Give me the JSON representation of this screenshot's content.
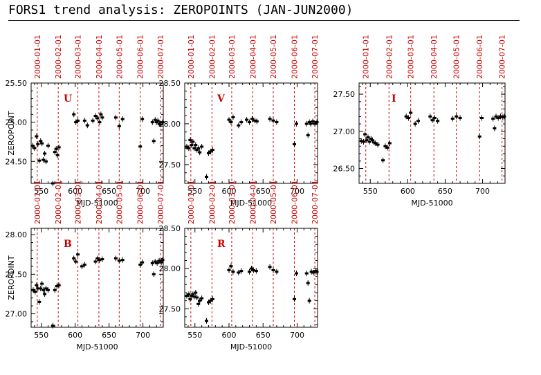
{
  "page_title": "FORS1 trend analysis: ZEROPOINTS (JAN-JUN2000)",
  "colors": {
    "axes": "#000000",
    "points": "#000000",
    "month_markers": "#cc0000",
    "band_label": "#cc0000"
  },
  "chart_data": [
    {
      "type": "scatter",
      "band": "U",
      "xlabel": "MJD-51000",
      "ylabel": "ZEROPOINT",
      "xlim": [
        535,
        730
      ],
      "ylim": [
        24.22,
        25.5
      ],
      "xticks": [
        550,
        600,
        650,
        700
      ],
      "yticks": [
        24.5,
        25.0,
        25.5
      ],
      "yticklabels": [
        "24.50",
        "25.00",
        "25.50"
      ],
      "month_markers": {
        "dates": [
          "2000-01-01",
          "2000-02-01",
          "2000-03-01",
          "2000-04-01",
          "2000-05-01",
          "2000-06-01",
          "2000-07-01"
        ],
        "x": [
          544,
          575,
          604,
          635,
          665,
          696,
          726
        ]
      },
      "points": [
        {
          "x": 537,
          "y": 24.7
        },
        {
          "x": 540,
          "y": 24.67
        },
        {
          "x": 543,
          "y": 24.82
        },
        {
          "x": 545,
          "y": 24.72
        },
        {
          "x": 547,
          "y": 24.51
        },
        {
          "x": 549,
          "y": 24.76
        },
        {
          "x": 551,
          "y": 24.73
        },
        {
          "x": 553,
          "y": 24.52
        },
        {
          "x": 555,
          "y": 24.6
        },
        {
          "x": 557,
          "y": 24.5
        },
        {
          "x": 560,
          "y": 24.7
        },
        {
          "x": 567,
          "y": 24.22
        },
        {
          "x": 570,
          "y": 24.62
        },
        {
          "x": 572,
          "y": 24.66
        },
        {
          "x": 574,
          "y": 24.58
        },
        {
          "x": 576,
          "y": 24.68
        },
        {
          "x": 598,
          "y": 25.1
        },
        {
          "x": 601,
          "y": 25.0
        },
        {
          "x": 604,
          "y": 25.02
        },
        {
          "x": 614,
          "y": 25.02
        },
        {
          "x": 618,
          "y": 24.96
        },
        {
          "x": 626,
          "y": 25.02
        },
        {
          "x": 630,
          "y": 25.08
        },
        {
          "x": 633,
          "y": 25.05
        },
        {
          "x": 636,
          "y": 25.0
        },
        {
          "x": 638,
          "y": 25.1
        },
        {
          "x": 640,
          "y": 25.06
        },
        {
          "x": 660,
          "y": 25.06
        },
        {
          "x": 665,
          "y": 24.95
        },
        {
          "x": 670,
          "y": 25.04
        },
        {
          "x": 696,
          "y": 24.69
        },
        {
          "x": 699,
          "y": 25.04
        },
        {
          "x": 714,
          "y": 25.0
        },
        {
          "x": 716,
          "y": 24.76
        },
        {
          "x": 718,
          "y": 25.03
        },
        {
          "x": 720,
          "y": 25.0
        },
        {
          "x": 722,
          "y": 25.02
        },
        {
          "x": 724,
          "y": 24.98
        },
        {
          "x": 726,
          "y": 24.97
        },
        {
          "x": 729,
          "y": 25.0
        }
      ]
    },
    {
      "type": "scatter",
      "band": "V",
      "xlabel": "MJD-51000",
      "ylabel": "",
      "xlim": [
        535,
        730
      ],
      "ylim": [
        27.27,
        28.5
      ],
      "xticks": [
        550,
        600,
        650,
        700
      ],
      "yticks": [
        27.5,
        28.0,
        28.5
      ],
      "yticklabels": [
        "27.50",
        "28.00",
        "28.50"
      ],
      "month_markers": {
        "dates": [
          "2000-01-01",
          "2000-02-01",
          "2000-03-01",
          "2000-04-01",
          "2000-05-01",
          "2000-06-01",
          "2000-07-01"
        ],
        "x": [
          544,
          575,
          604,
          635,
          665,
          696,
          726
        ]
      },
      "points": [
        {
          "x": 538,
          "y": 27.72
        },
        {
          "x": 541,
          "y": 27.7
        },
        {
          "x": 543,
          "y": 27.8
        },
        {
          "x": 545,
          "y": 27.74
        },
        {
          "x": 547,
          "y": 27.78
        },
        {
          "x": 549,
          "y": 27.7
        },
        {
          "x": 551,
          "y": 27.74
        },
        {
          "x": 553,
          "y": 27.68
        },
        {
          "x": 555,
          "y": 27.7
        },
        {
          "x": 557,
          "y": 27.65
        },
        {
          "x": 560,
          "y": 27.72
        },
        {
          "x": 567,
          "y": 27.35
        },
        {
          "x": 570,
          "y": 27.64
        },
        {
          "x": 573,
          "y": 27.66
        },
        {
          "x": 576,
          "y": 27.68
        },
        {
          "x": 600,
          "y": 28.05
        },
        {
          "x": 603,
          "y": 28.02
        },
        {
          "x": 606,
          "y": 28.08
        },
        {
          "x": 614,
          "y": 27.98
        },
        {
          "x": 618,
          "y": 28.02
        },
        {
          "x": 626,
          "y": 28.05
        },
        {
          "x": 630,
          "y": 28.02
        },
        {
          "x": 634,
          "y": 28.06
        },
        {
          "x": 638,
          "y": 28.04
        },
        {
          "x": 641,
          "y": 28.03
        },
        {
          "x": 660,
          "y": 28.06
        },
        {
          "x": 665,
          "y": 28.04
        },
        {
          "x": 670,
          "y": 28.02
        },
        {
          "x": 696,
          "y": 27.75
        },
        {
          "x": 699,
          "y": 28.0
        },
        {
          "x": 714,
          "y": 28.0
        },
        {
          "x": 716,
          "y": 27.86
        },
        {
          "x": 718,
          "y": 28.02
        },
        {
          "x": 720,
          "y": 28.0
        },
        {
          "x": 723,
          "y": 28.03
        },
        {
          "x": 726,
          "y": 28.0
        },
        {
          "x": 729,
          "y": 28.02
        }
      ]
    },
    {
      "type": "scatter",
      "band": "I",
      "xlabel": "MJD-51000",
      "ylabel": "",
      "xlim": [
        535,
        730
      ],
      "ylim": [
        26.3,
        27.65
      ],
      "xticks": [
        550,
        600,
        650,
        700
      ],
      "yticks": [
        26.5,
        27.0,
        27.5
      ],
      "yticklabels": [
        "26.50",
        "27.00",
        "27.50"
      ],
      "month_markers": {
        "dates": [
          "2000-01-01",
          "2000-02-01",
          "2000-03-01",
          "2000-04-01",
          "2000-05-01",
          "2000-06-01",
          "2000-07-01"
        ],
        "x": [
          544,
          575,
          604,
          635,
          665,
          696,
          726
        ]
      },
      "points": [
        {
          "x": 538,
          "y": 26.87
        },
        {
          "x": 541,
          "y": 26.86
        },
        {
          "x": 543,
          "y": 26.96
        },
        {
          "x": 545,
          "y": 26.88
        },
        {
          "x": 547,
          "y": 26.92
        },
        {
          "x": 549,
          "y": 26.86
        },
        {
          "x": 551,
          "y": 26.9
        },
        {
          "x": 553,
          "y": 26.88
        },
        {
          "x": 555,
          "y": 26.85
        },
        {
          "x": 557,
          "y": 26.84
        },
        {
          "x": 560,
          "y": 26.82
        },
        {
          "x": 567,
          "y": 26.61
        },
        {
          "x": 570,
          "y": 26.8
        },
        {
          "x": 573,
          "y": 26.78
        },
        {
          "x": 576,
          "y": 26.84
        },
        {
          "x": 598,
          "y": 27.2
        },
        {
          "x": 601,
          "y": 27.18
        },
        {
          "x": 604,
          "y": 27.25
        },
        {
          "x": 610,
          "y": 27.1
        },
        {
          "x": 614,
          "y": 27.14
        },
        {
          "x": 630,
          "y": 27.2
        },
        {
          "x": 633,
          "y": 27.15
        },
        {
          "x": 636,
          "y": 27.18
        },
        {
          "x": 640,
          "y": 27.14
        },
        {
          "x": 660,
          "y": 27.17
        },
        {
          "x": 665,
          "y": 27.2
        },
        {
          "x": 670,
          "y": 27.18
        },
        {
          "x": 696,
          "y": 26.93
        },
        {
          "x": 699,
          "y": 27.18
        },
        {
          "x": 714,
          "y": 27.17
        },
        {
          "x": 716,
          "y": 27.04
        },
        {
          "x": 718,
          "y": 27.2
        },
        {
          "x": 721,
          "y": 27.18
        },
        {
          "x": 724,
          "y": 27.2
        },
        {
          "x": 727,
          "y": 27.19
        },
        {
          "x": 729,
          "y": 27.2
        }
      ]
    },
    {
      "type": "scatter",
      "band": "B",
      "xlabel": "MJD-51000",
      "ylabel": "ZEROPOINT",
      "xlim": [
        535,
        730
      ],
      "ylim": [
        26.83,
        28.08
      ],
      "xticks": [
        550,
        600,
        650,
        700
      ],
      "yticks": [
        27.0,
        27.5,
        28.0
      ],
      "yticklabels": [
        "27.00",
        "27.50",
        "28.00"
      ],
      "month_markers": {
        "dates": [
          "2000-01-01",
          "2000-02-01",
          "2000-03-01",
          "2000-04-01",
          "2000-05-01",
          "2000-06-01",
          "2000-07-01"
        ],
        "x": [
          544,
          575,
          604,
          635,
          665,
          696,
          726
        ]
      },
      "points": [
        {
          "x": 538,
          "y": 27.3
        },
        {
          "x": 541,
          "y": 27.28
        },
        {
          "x": 543,
          "y": 27.36
        },
        {
          "x": 545,
          "y": 27.32
        },
        {
          "x": 547,
          "y": 27.15
        },
        {
          "x": 549,
          "y": 27.32
        },
        {
          "x": 551,
          "y": 27.38
        },
        {
          "x": 553,
          "y": 27.3
        },
        {
          "x": 555,
          "y": 27.25
        },
        {
          "x": 557,
          "y": 27.32
        },
        {
          "x": 560,
          "y": 27.3
        },
        {
          "x": 567,
          "y": 26.85
        },
        {
          "x": 570,
          "y": 27.3
        },
        {
          "x": 573,
          "y": 27.35
        },
        {
          "x": 576,
          "y": 27.36
        },
        {
          "x": 598,
          "y": 27.7
        },
        {
          "x": 601,
          "y": 27.66
        },
        {
          "x": 604,
          "y": 27.75
        },
        {
          "x": 610,
          "y": 27.6
        },
        {
          "x": 614,
          "y": 27.62
        },
        {
          "x": 630,
          "y": 27.66
        },
        {
          "x": 633,
          "y": 27.7
        },
        {
          "x": 636,
          "y": 27.68
        },
        {
          "x": 640,
          "y": 27.69
        },
        {
          "x": 660,
          "y": 27.7
        },
        {
          "x": 665,
          "y": 27.67
        },
        {
          "x": 670,
          "y": 27.68
        },
        {
          "x": 696,
          "y": 27.62
        },
        {
          "x": 699,
          "y": 27.65
        },
        {
          "x": 714,
          "y": 27.64
        },
        {
          "x": 716,
          "y": 27.5
        },
        {
          "x": 718,
          "y": 27.66
        },
        {
          "x": 721,
          "y": 27.64
        },
        {
          "x": 724,
          "y": 27.67
        },
        {
          "x": 727,
          "y": 27.65
        },
        {
          "x": 729,
          "y": 27.68
        }
      ]
    },
    {
      "type": "scatter",
      "band": "R",
      "xlabel": "MJD-51000",
      "ylabel": "",
      "xlim": [
        535,
        730
      ],
      "ylim": [
        27.27,
        28.5
      ],
      "xticks": [
        550,
        600,
        650,
        700
      ],
      "yticks": [
        27.5,
        28.0,
        28.5
      ],
      "yticklabels": [
        "27.50",
        "28.00",
        "28.50"
      ],
      "month_markers": {
        "dates": [
          "2000-01-01",
          "2000-02-01",
          "2000-03-01",
          "2000-04-01",
          "2000-05-01",
          "2000-06-01",
          "2000-07-01"
        ],
        "x": [
          544,
          575,
          604,
          635,
          665,
          696,
          726
        ]
      },
      "points": [
        {
          "x": 538,
          "y": 27.66
        },
        {
          "x": 541,
          "y": 27.68
        },
        {
          "x": 543,
          "y": 27.62
        },
        {
          "x": 545,
          "y": 27.66
        },
        {
          "x": 547,
          "y": 27.68
        },
        {
          "x": 549,
          "y": 27.65
        },
        {
          "x": 551,
          "y": 27.7
        },
        {
          "x": 553,
          "y": 27.64
        },
        {
          "x": 555,
          "y": 27.56
        },
        {
          "x": 557,
          "y": 27.6
        },
        {
          "x": 560,
          "y": 27.63
        },
        {
          "x": 567,
          "y": 27.35
        },
        {
          "x": 570,
          "y": 27.58
        },
        {
          "x": 573,
          "y": 27.6
        },
        {
          "x": 576,
          "y": 27.62
        },
        {
          "x": 600,
          "y": 27.98
        },
        {
          "x": 603,
          "y": 28.03
        },
        {
          "x": 606,
          "y": 27.96
        },
        {
          "x": 614,
          "y": 27.95
        },
        {
          "x": 618,
          "y": 27.97
        },
        {
          "x": 630,
          "y": 27.96
        },
        {
          "x": 633,
          "y": 28.0
        },
        {
          "x": 636,
          "y": 27.98
        },
        {
          "x": 640,
          "y": 27.97
        },
        {
          "x": 660,
          "y": 28.02
        },
        {
          "x": 665,
          "y": 27.98
        },
        {
          "x": 670,
          "y": 27.96
        },
        {
          "x": 696,
          "y": 27.62
        },
        {
          "x": 699,
          "y": 27.94
        },
        {
          "x": 714,
          "y": 27.94
        },
        {
          "x": 716,
          "y": 27.82
        },
        {
          "x": 718,
          "y": 27.6
        },
        {
          "x": 721,
          "y": 27.96
        },
        {
          "x": 724,
          "y": 27.95
        },
        {
          "x": 727,
          "y": 27.97
        },
        {
          "x": 729,
          "y": 27.96
        }
      ]
    }
  ]
}
